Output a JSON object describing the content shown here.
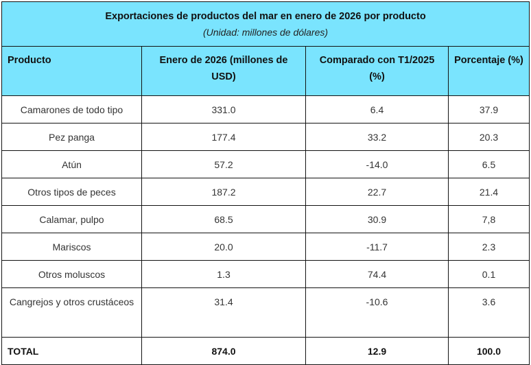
{
  "table": {
    "title": "Exportaciones de productos del mar en enero de 2026 por producto",
    "subtitle": "(Unidad: millones de dólares)",
    "headers": [
      "Producto",
      "Enero de 2026 (millones de USD)",
      "Comparado con T1/2025 (%)",
      "Porcentaje (%)"
    ],
    "rows": [
      [
        "Camarones de todo tipo",
        "331.0",
        "6.4",
        "37.9"
      ],
      [
        "Pez panga",
        "177.4",
        "33.2",
        "20.3"
      ],
      [
        "Atún",
        "57.2",
        "-14.0",
        "6.5"
      ],
      [
        "Otros tipos de peces",
        "187.2",
        "22.7",
        "21.4"
      ],
      [
        "Calamar, pulpo",
        "68.5",
        "30.9",
        "7,8"
      ],
      [
        "Mariscos",
        "20.0",
        "-11.7",
        "2.3"
      ],
      [
        "Otros moluscos",
        "1.3",
        "74.4",
        "0.1"
      ],
      [
        "Cangrejos y otros crustáceos",
        "31.4",
        "-10.6",
        "3.6"
      ]
    ],
    "total": [
      "TOTAL",
      "874.0",
      "12.9",
      "100.0"
    ]
  },
  "colors": {
    "header_bg": "#7ae4fe",
    "border": "#111111"
  }
}
